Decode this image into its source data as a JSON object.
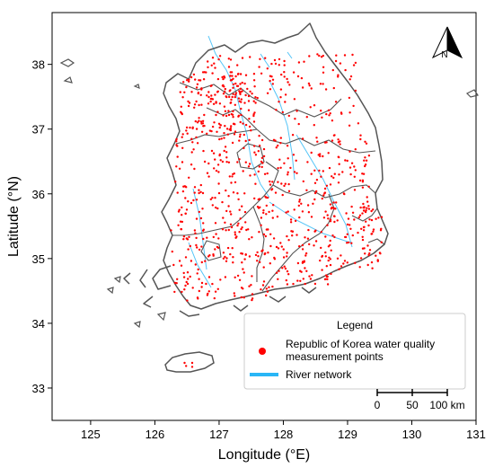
{
  "map": {
    "xlabel": "Longitude (°E)",
    "ylabel": "Latitude (°N)",
    "xlim": [
      124.4,
      131.0
    ],
    "ylim": [
      32.5,
      38.8
    ],
    "x_ticks": [
      125,
      126,
      127,
      128,
      129,
      130,
      131
    ],
    "y_ticks": [
      33,
      34,
      35,
      36,
      37,
      38
    ],
    "north_arrow_label": "N",
    "scale_bar": {
      "labels": [
        "0",
        "50",
        "100 km"
      ]
    },
    "legend": {
      "title": "Legend",
      "items": [
        {
          "label_line1": "Republic of Korea water quality",
          "label_line2": "measurement points",
          "marker": "point",
          "color": "#ff0000"
        },
        {
          "label_line1": "River network",
          "marker": "line",
          "color": "#29b6f6"
        }
      ]
    },
    "colors": {
      "boundary": "#555555",
      "river": "#29b6f6",
      "points": "#ff0000"
    }
  }
}
